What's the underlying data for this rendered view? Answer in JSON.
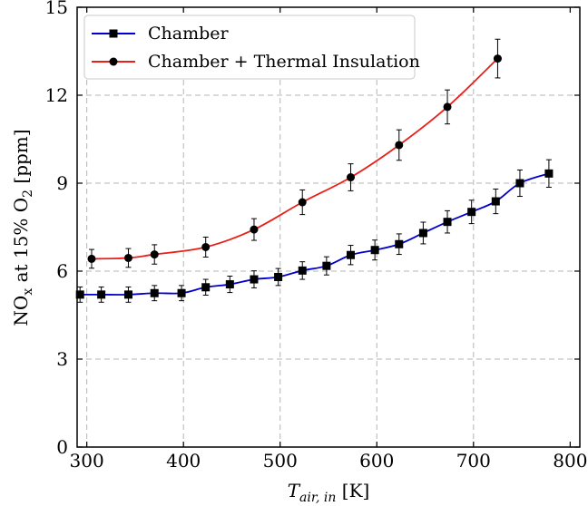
{
  "chart_data": {
    "type": "line",
    "xlabel_main": "T",
    "xlabel_sub": "air, in",
    "xlabel_unit": " [K]",
    "ylabel_prefix": "NO",
    "ylabel_sub1": "x",
    "ylabel_mid": " at 15% O",
    "ylabel_sub2": "2",
    "ylabel_suffix": " [ppm]",
    "xlim": [
      290,
      810
    ],
    "ylim": [
      0,
      15
    ],
    "xticks": [
      300,
      400,
      500,
      600,
      700,
      800
    ],
    "yticks": [
      0,
      3,
      6,
      9,
      12,
      15
    ],
    "grid": true,
    "legend_position": "top-left",
    "series": [
      {
        "name": "Chamber",
        "color": "#0000cc",
        "marker": "square",
        "x": [
          293,
          315,
          343,
          370,
          398,
          423,
          448,
          473,
          498,
          523,
          548,
          573,
          598,
          623,
          648,
          673,
          698,
          723,
          748,
          778
        ],
        "y": [
          5.2,
          5.2,
          5.2,
          5.25,
          5.25,
          5.45,
          5.55,
          5.72,
          5.8,
          6.02,
          6.18,
          6.55,
          6.72,
          6.92,
          7.3,
          7.68,
          8.02,
          8.38,
          9.0,
          9.33
        ],
        "err": [
          0.26,
          0.26,
          0.26,
          0.26,
          0.26,
          0.27,
          0.28,
          0.29,
          0.29,
          0.3,
          0.31,
          0.33,
          0.34,
          0.35,
          0.37,
          0.38,
          0.4,
          0.42,
          0.45,
          0.47
        ]
      },
      {
        "name": "Chamber + Thermal Insulation",
        "color": "#e8201a",
        "marker": "circle",
        "x": [
          305,
          343,
          370,
          423,
          473,
          523,
          573,
          623,
          673,
          725
        ],
        "y": [
          6.42,
          6.45,
          6.57,
          6.82,
          7.42,
          8.35,
          9.2,
          10.3,
          11.6,
          13.25
        ],
        "err": [
          0.32,
          0.32,
          0.33,
          0.34,
          0.37,
          0.42,
          0.46,
          0.52,
          0.58,
          0.66
        ]
      }
    ]
  }
}
